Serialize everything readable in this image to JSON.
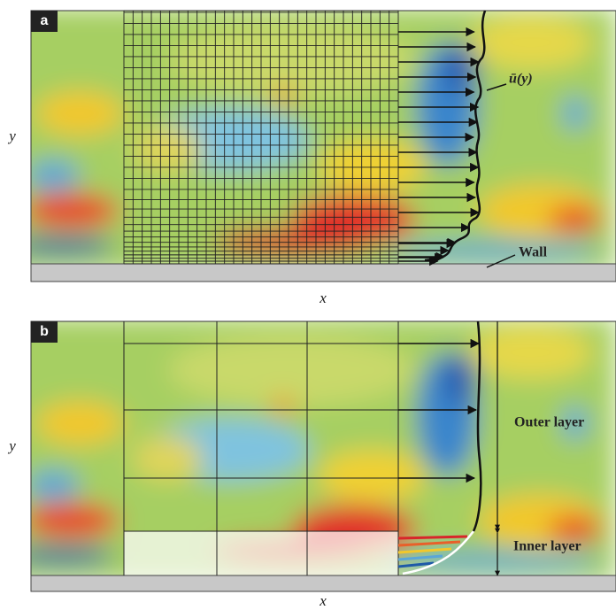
{
  "panels": [
    {
      "label": "a",
      "y_axis": "y",
      "x_axis": "x",
      "profile_label": "ū(y)",
      "wall_label": "Wall"
    },
    {
      "label": "b",
      "y_axis": "y",
      "x_axis": "x",
      "outer_label": "Outer layer",
      "inner_label": "Inner layer"
    }
  ]
}
